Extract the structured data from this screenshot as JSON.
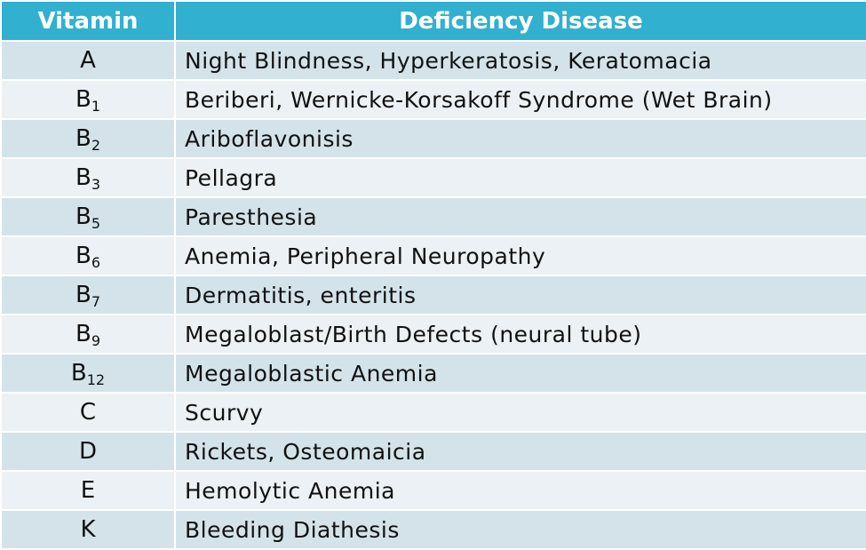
{
  "header": {
    "vitamin": "Vitamin",
    "disease": "Deficiency Disease"
  },
  "rows": [
    {
      "base": "A",
      "sub": "",
      "disease": "Night Blindness, Hyperkeratosis, Keratomacia"
    },
    {
      "base": "B",
      "sub": "1",
      "disease": "Beriberi, Wernicke-Korsakoff Syndrome (Wet Brain)"
    },
    {
      "base": "B",
      "sub": "2",
      "disease": "Ariboflavonisis"
    },
    {
      "base": "B",
      "sub": "3",
      "disease": "Pellagra"
    },
    {
      "base": "B",
      "sub": "5",
      "disease": "Paresthesia"
    },
    {
      "base": "B",
      "sub": "6",
      "disease": "Anemia, Peripheral Neuropathy"
    },
    {
      "base": "B",
      "sub": "7",
      "disease": "Dermatitis, enteritis"
    },
    {
      "base": "B",
      "sub": "9",
      "disease": "Megaloblast/Birth Defects (neural tube)"
    },
    {
      "base": "B",
      "sub": "12",
      "disease": "Megaloblastic Anemia"
    },
    {
      "base": "C",
      "sub": "",
      "disease": "Scurvy"
    },
    {
      "base": "D",
      "sub": "",
      "disease": "Rickets, Osteomaicia"
    },
    {
      "base": "E",
      "sub": "",
      "disease": "Hemolytic Anemia"
    },
    {
      "base": "K",
      "sub": "",
      "disease": "Bleeding Diathesis"
    }
  ],
  "colors": {
    "header_bg": "#31b0cf",
    "row_dark": "#d4e3ea",
    "row_light": "#ebf1f4"
  }
}
